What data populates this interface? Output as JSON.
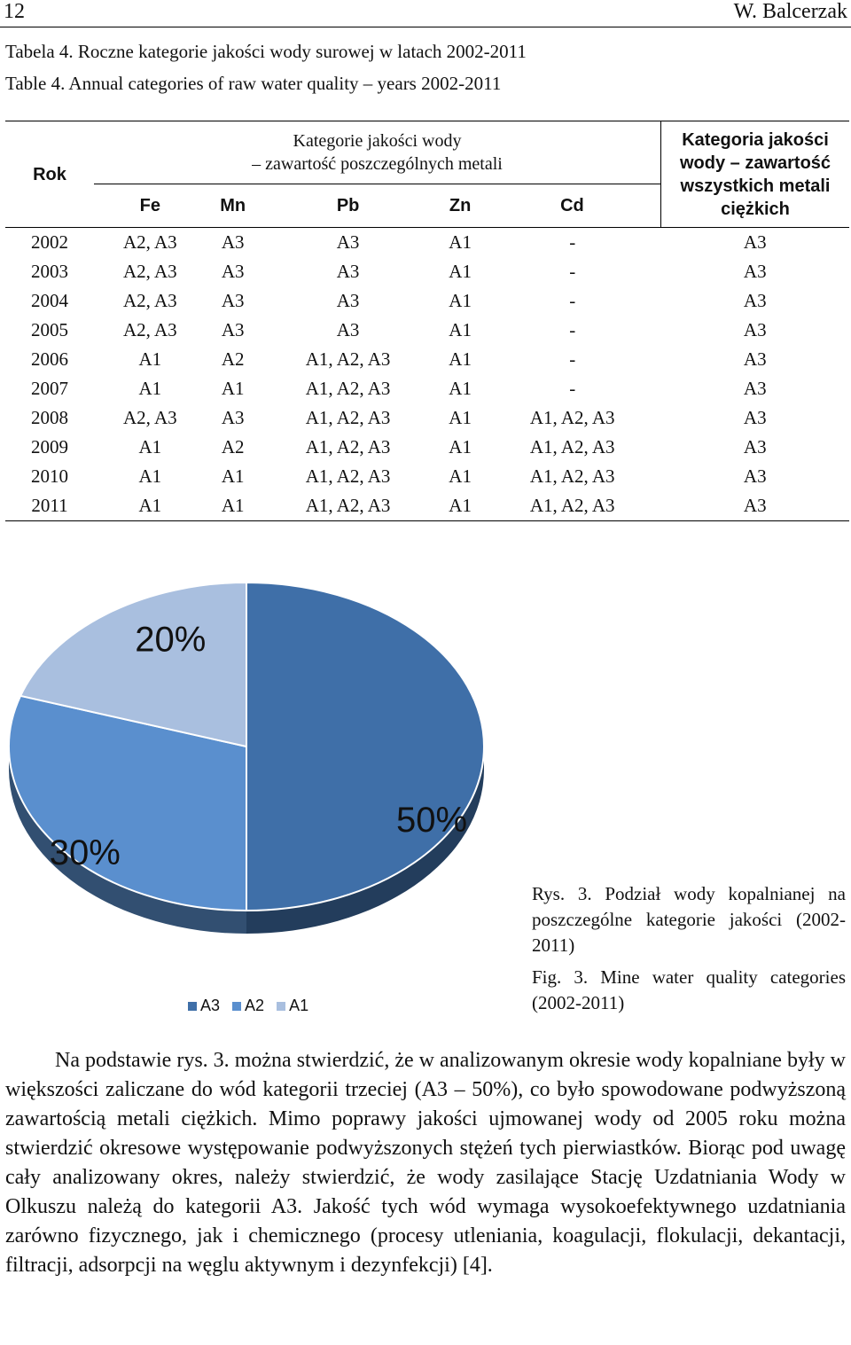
{
  "header": {
    "page_number": "12",
    "author": "W. Balcerzak"
  },
  "captions": {
    "table_pl": "Tabela 4. Roczne kategorie jakości wody surowej w latach 2002-2011",
    "table_en": "Table 4. Annual categories of raw water quality – years 2002-2011"
  },
  "table": {
    "col_rok": "Rok",
    "metals_heading_line1": "Kategorie jakości wody",
    "metals_heading_line2": "– zawartość poszczególnych metali",
    "all_heading_line1": "Kategoria jakości",
    "all_heading_line2": "wody – zawartość",
    "all_heading_line3": "wszystkich metali",
    "all_heading_line4": "ciężkich",
    "metals": [
      "Fe",
      "Mn",
      "Pb",
      "Zn",
      "Cd"
    ],
    "rows": [
      [
        "2002",
        "A2, A3",
        "A3",
        "A3",
        "A1",
        "-",
        "A3"
      ],
      [
        "2003",
        "A2, A3",
        "A3",
        "A3",
        "A1",
        "-",
        "A3"
      ],
      [
        "2004",
        "A2, A3",
        "A3",
        "A3",
        "A1",
        "-",
        "A3"
      ],
      [
        "2005",
        "A2, A3",
        "A3",
        "A3",
        "A1",
        "-",
        "A3"
      ],
      [
        "2006",
        "A1",
        "A2",
        "A1, A2, A3",
        "A1",
        "-",
        "A3"
      ],
      [
        "2007",
        "A1",
        "A1",
        "A1, A2, A3",
        "A1",
        "-",
        "A3"
      ],
      [
        "2008",
        "A2, A3",
        "A3",
        "A1, A2, A3",
        "A1",
        "A1, A2, A3",
        "A3"
      ],
      [
        "2009",
        "A1",
        "A2",
        "A1, A2, A3",
        "A1",
        "A1, A2, A3",
        "A3"
      ],
      [
        "2010",
        "A1",
        "A1",
        "A1, A2, A3",
        "A1",
        "A1, A2, A3",
        "A3"
      ],
      [
        "2011",
        "A1",
        "A1",
        "A1, A2, A3",
        "A1",
        "A1, A2, A3",
        "A3"
      ]
    ]
  },
  "chart_data": {
    "type": "pie",
    "categories": [
      "A3",
      "A2",
      "A1"
    ],
    "values": [
      50,
      30,
      20
    ],
    "labels": [
      "50%",
      "30%",
      "20%"
    ],
    "colors": [
      "#3f6fa8",
      "#5a8fce",
      "#a9bfdf"
    ],
    "legend_position": "bottom"
  },
  "figure_caption": {
    "pl": "Rys. 3. Podział wody kopalnianej na poszczególne kategorie jakości (2002-2011)",
    "en": "Fig. 3. Mine water quality categories (2002-2011)"
  },
  "body_text": "Na podstawie rys. 3. można stwierdzić, że w analizowanym okresie wody kopalniane były w większości zaliczane do wód kategorii trzeciej (A3 – 50%), co było spowodowane podwyższoną zawartością metali ciężkich. Mimo poprawy jakości ujmowanej wody od 2005 roku można stwierdzić okresowe występowanie podwyższonych stężeń tych pierwiastków. Biorąc pod uwagę cały analizowany okres, należy stwierdzić, że wody zasilające Stację Uzdatniania Wody w Olkuszu należą do kategorii A3. Jakość tych wód wymaga wysokoefektywnego uzdatniania zarówno fizycznego, jak i chemicznego (procesy utleniania, koagulacji, flokulacji, dekantacji, filtracji, adsorpcji na węglu aktywnym i dezynfekcji) [4]."
}
